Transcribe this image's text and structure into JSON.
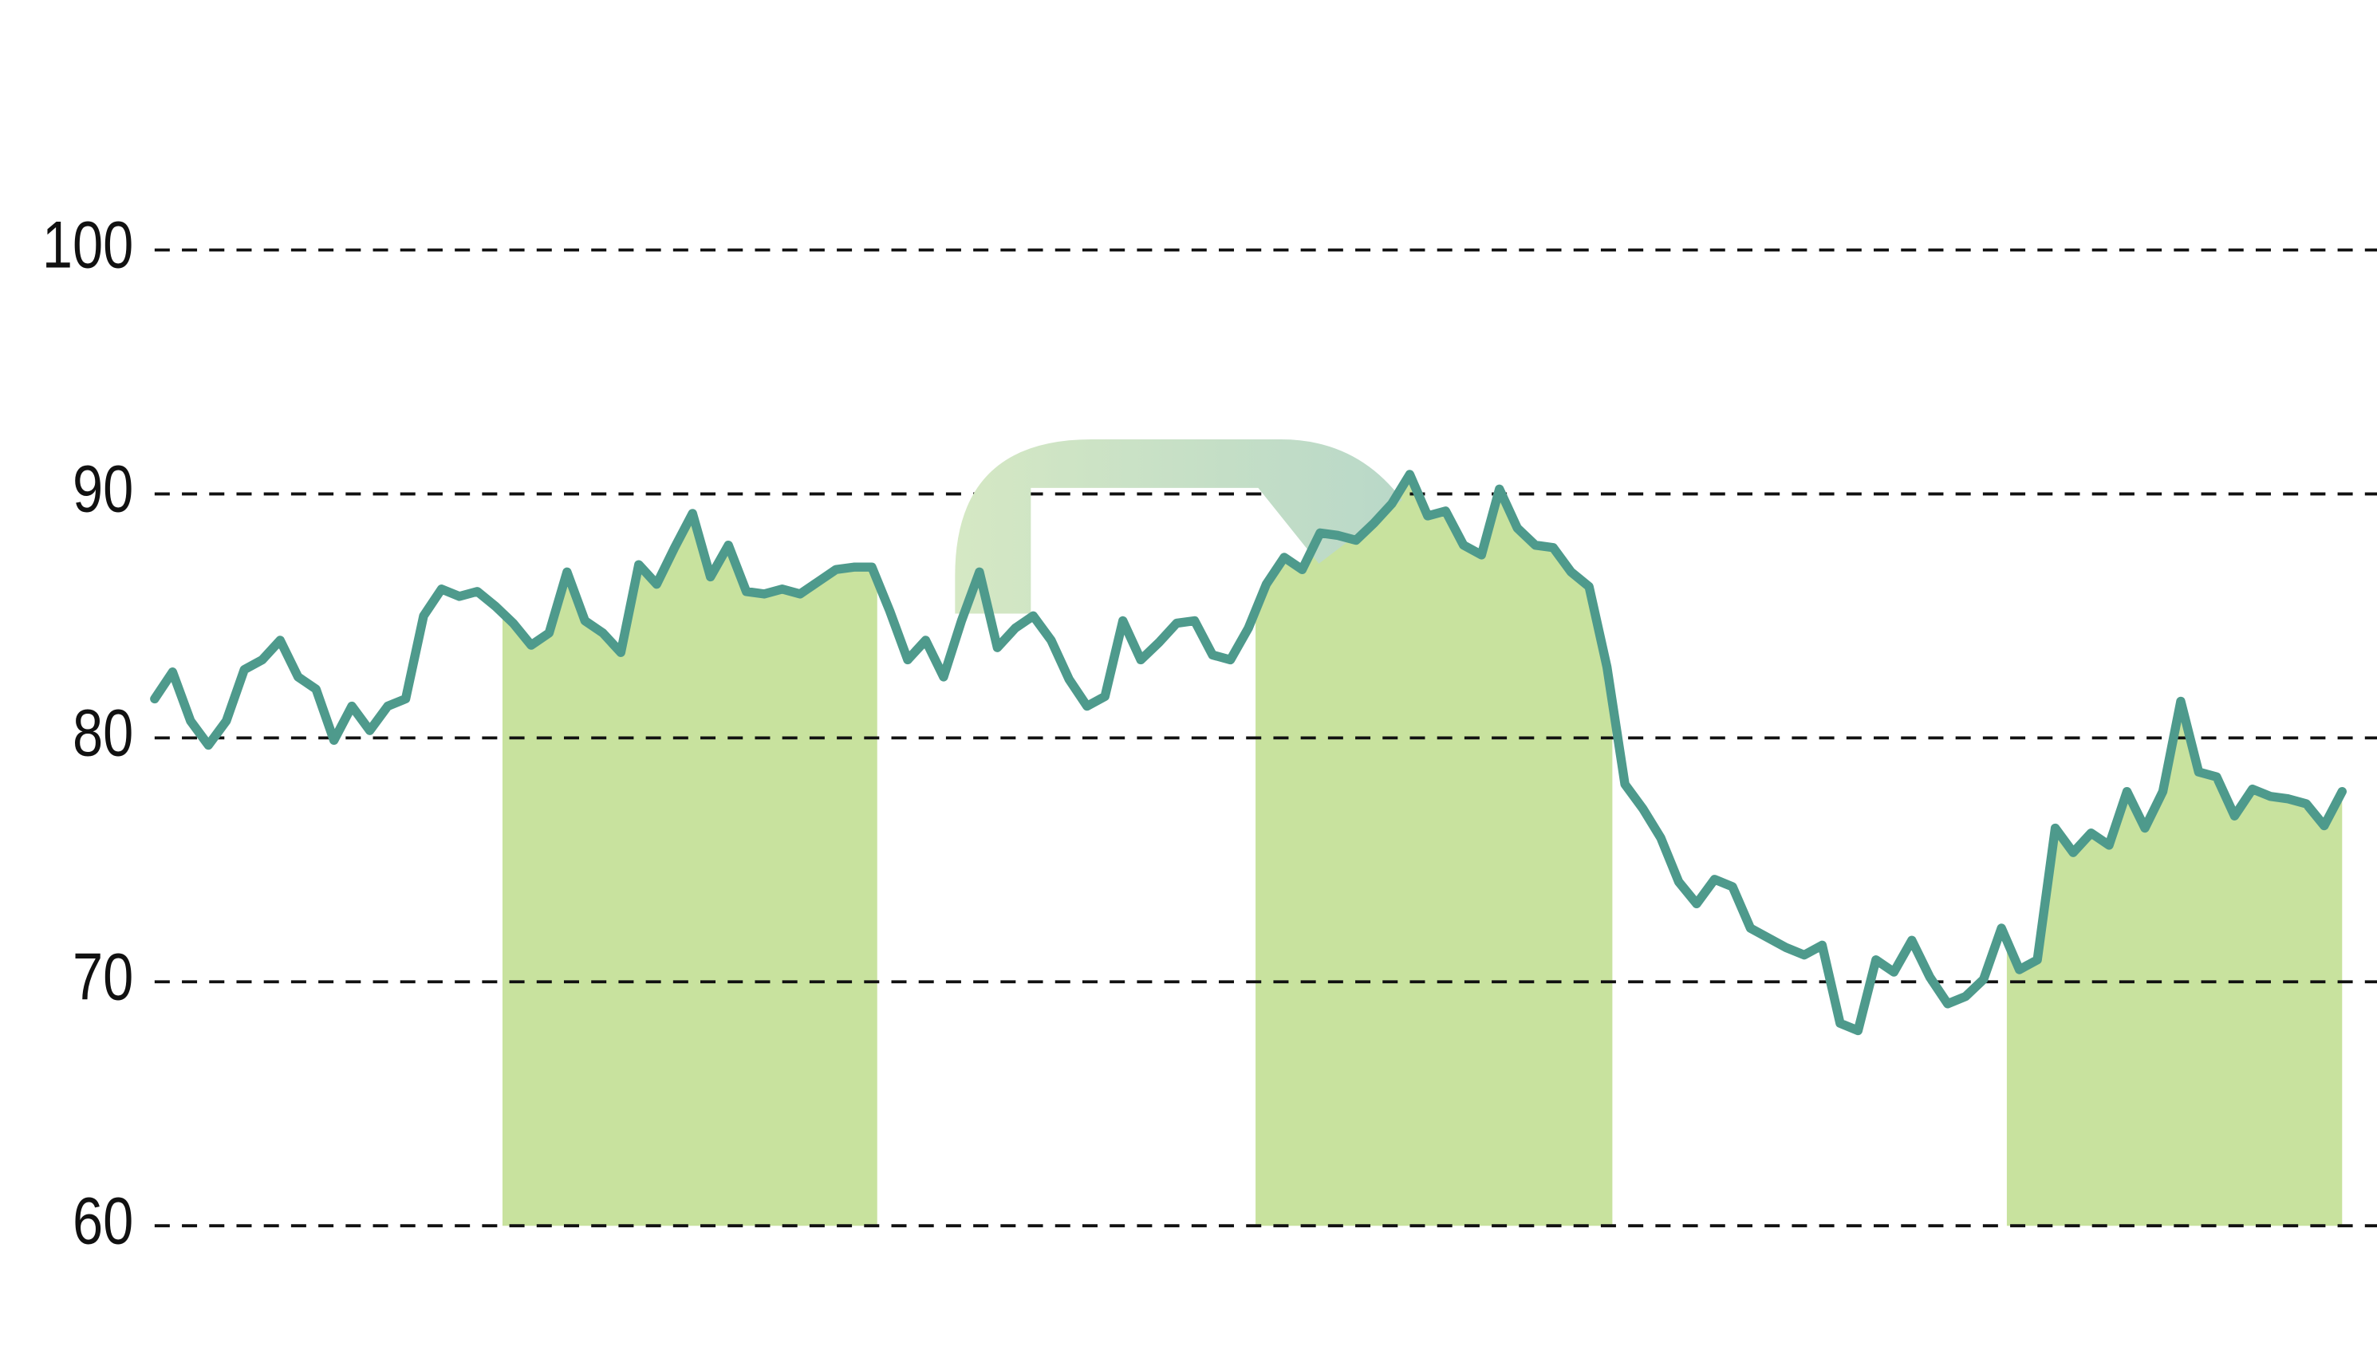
{
  "chart_data": {
    "type": "line",
    "values": [
      81.6,
      82.7,
      80.7,
      79.7,
      80.7,
      82.8,
      83.2,
      84.0,
      82.5,
      82.0,
      79.9,
      81.3,
      80.3,
      81.3,
      81.6,
      85.0,
      86.1,
      85.8,
      86.0,
      85.4,
      84.7,
      83.8,
      84.3,
      86.8,
      84.8,
      84.3,
      83.5,
      87.1,
      86.3,
      87.8,
      89.2,
      86.6,
      87.9,
      86.0,
      85.9,
      86.1,
      85.9,
      86.4,
      86.9,
      87.0,
      87.0,
      85.2,
      83.2,
      84.0,
      82.5,
      84.8,
      86.8,
      83.7,
      84.5,
      85.0,
      84.0,
      82.4,
      81.3,
      81.7,
      84.8,
      83.2,
      83.9,
      84.7,
      84.8,
      83.4,
      83.2,
      84.5,
      86.3,
      87.4,
      86.9,
      88.4,
      88.3,
      88.1,
      88.8,
      89.6,
      90.8,
      89.1,
      89.3,
      87.9,
      87.5,
      90.2,
      88.6,
      87.9,
      87.8,
      86.8,
      86.2,
      82.9,
      78.1,
      77.1,
      75.9,
      74.1,
      73.2,
      74.2,
      73.9,
      72.2,
      71.8,
      71.4,
      71.1,
      71.5,
      68.3,
      68.0,
      70.9,
      70.4,
      71.7,
      70.2,
      69.1,
      69.4,
      70.1,
      72.2,
      70.5,
      70.9,
      76.3,
      75.3,
      76.1,
      75.6,
      77.8,
      76.3,
      77.8,
      81.5,
      78.6,
      78.4,
      76.8,
      77.9,
      77.6,
      77.5,
      77.3,
      76.4,
      77.8
    ],
    "color": "#4e9a8c",
    "highlight_ranges": [
      [
        19.4,
        40.3
      ],
      [
        61.4,
        81.3
      ],
      [
        103.3,
        122
      ]
    ],
    "highlight_color": "#c8e29e",
    "ylim": [
      60,
      100
    ],
    "yticks": [
      60,
      70,
      80,
      90,
      100
    ],
    "grid": true
  }
}
